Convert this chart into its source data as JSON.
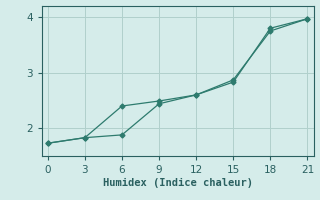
{
  "line1_x": [
    0,
    3,
    6,
    9,
    12,
    15,
    18,
    21
  ],
  "line1_y": [
    1.73,
    1.83,
    1.88,
    2.44,
    2.6,
    2.83,
    3.8,
    3.97
  ],
  "line2_x": [
    0,
    3,
    6,
    9,
    12,
    15,
    18,
    21
  ],
  "line2_y": [
    1.73,
    1.83,
    2.4,
    2.49,
    2.6,
    2.87,
    3.75,
    3.97
  ],
  "line_color": "#2e7b6e",
  "marker": "D",
  "marker_size": 2.5,
  "xlabel": "Humidex (Indice chaleur)",
  "xlim": [
    -0.5,
    21.5
  ],
  "ylim": [
    1.5,
    4.2
  ],
  "xticks": [
    0,
    3,
    6,
    9,
    12,
    15,
    18,
    21
  ],
  "yticks": [
    2,
    3,
    4
  ],
  "bg_color": "#d5ecea",
  "grid_color": "#b0d0cc",
  "font_color": "#2a6060",
  "xlabel_fontsize": 7.5,
  "tick_fontsize": 7.5,
  "linewidth": 0.9
}
